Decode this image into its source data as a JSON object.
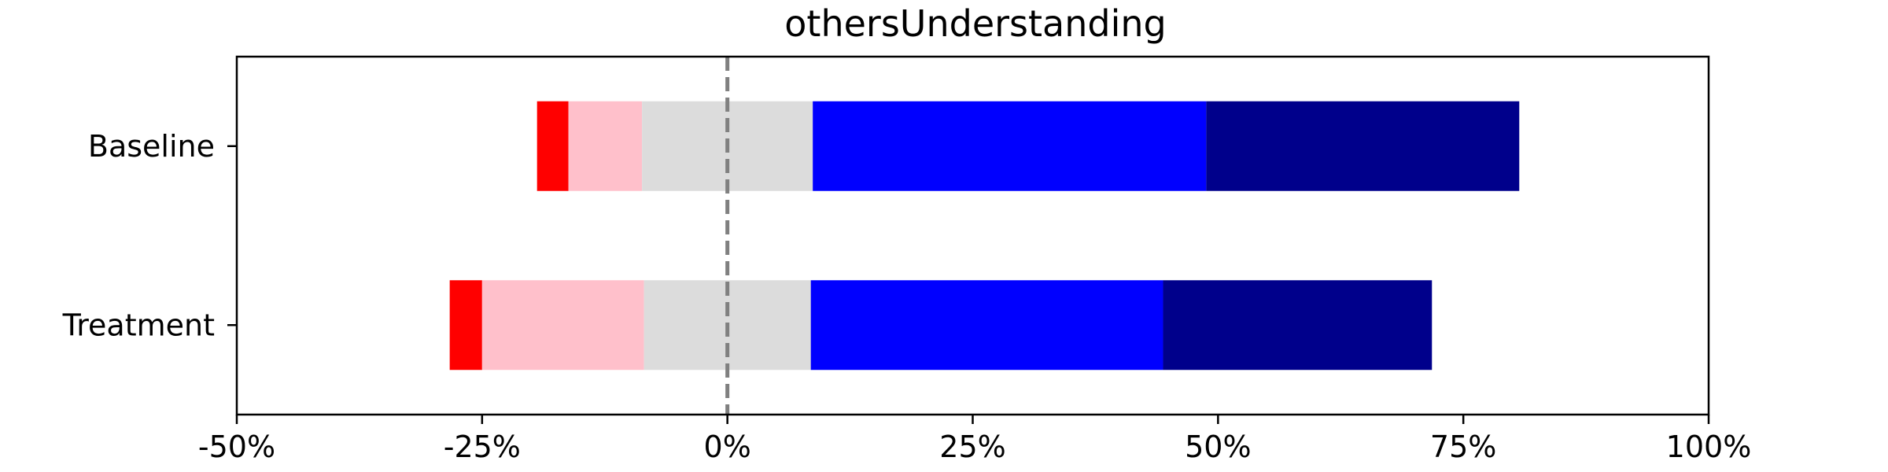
{
  "chart_data": {
    "type": "bar",
    "orientation": "horizontal",
    "stacked": "diverging",
    "title": "othersUnderstanding",
    "xlabel": "",
    "ylabel": "",
    "xlim": [
      -50,
      100
    ],
    "x_ticks": [
      -50,
      -25,
      0,
      25,
      50,
      75,
      100
    ],
    "x_tick_labels": [
      "-50%",
      "-25%",
      "0%",
      "25%",
      "50%",
      "75%",
      "100%"
    ],
    "categories": [
      "Baseline",
      "Treatment"
    ],
    "reference_line": {
      "x": 0,
      "style": "dashed",
      "color": "#808080"
    },
    "grid": false,
    "legend": "none",
    "series": [
      {
        "color": "#ff0000",
        "segments": [
          [
            -19.4,
            -16.2
          ],
          [
            -28.3,
            -25.0
          ]
        ]
      },
      {
        "color": "#ffc0cb",
        "segments": [
          [
            -16.2,
            -8.7
          ],
          [
            -25.0,
            -8.5
          ]
        ]
      },
      {
        "color": "#dcdcdc",
        "segments": [
          [
            -8.7,
            8.7
          ],
          [
            -8.5,
            8.5
          ]
        ]
      },
      {
        "color": "#0000ff",
        "segments": [
          [
            8.7,
            48.8
          ],
          [
            8.5,
            44.4
          ]
        ]
      },
      {
        "color": "#00008b",
        "segments": [
          [
            48.8,
            80.7
          ],
          [
            44.4,
            71.8
          ]
        ]
      }
    ]
  }
}
